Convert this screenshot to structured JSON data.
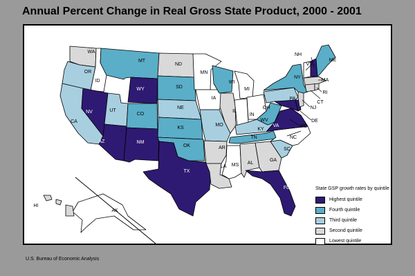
{
  "title": "Annual Percent Change in Real Gross State Product, 2000 - 2001",
  "source": "U.S. Bureau of Economic Analysis",
  "colors": {
    "q5": "#2e1a72",
    "q4": "#5aaec8",
    "q3": "#a8cfe0",
    "q2": "#d9d9d9",
    "q1": "#ffffff",
    "outline": "#000000"
  },
  "legend": {
    "title": "State GSP growth rates by quintile",
    "items": [
      {
        "label": "Highest quintile",
        "quintile": "q5"
      },
      {
        "label": "Fourth quintile",
        "quintile": "q4"
      },
      {
        "label": "Third quintile",
        "quintile": "q3"
      },
      {
        "label": "Second quintile",
        "quintile": "q2"
      },
      {
        "label": "Lowest quintile",
        "quintile": "q1"
      }
    ]
  },
  "states": [
    {
      "abbr": "WA",
      "quintile": "q2"
    },
    {
      "abbr": "OR",
      "quintile": "q3"
    },
    {
      "abbr": "CA",
      "quintile": "q3"
    },
    {
      "abbr": "ID",
      "quintile": "q1"
    },
    {
      "abbr": "NV",
      "quintile": "q5"
    },
    {
      "abbr": "UT",
      "quintile": "q3"
    },
    {
      "abbr": "AZ",
      "quintile": "q5"
    },
    {
      "abbr": "MT",
      "quintile": "q4"
    },
    {
      "abbr": "WY",
      "quintile": "q5"
    },
    {
      "abbr": "CO",
      "quintile": "q4"
    },
    {
      "abbr": "NM",
      "quintile": "q5"
    },
    {
      "abbr": "ND",
      "quintile": "q2"
    },
    {
      "abbr": "SD",
      "quintile": "q4"
    },
    {
      "abbr": "NE",
      "quintile": "q3"
    },
    {
      "abbr": "KS",
      "quintile": "q4"
    },
    {
      "abbr": "OK",
      "quintile": "q4"
    },
    {
      "abbr": "TX",
      "quintile": "q5"
    },
    {
      "abbr": "MN",
      "quintile": "q1"
    },
    {
      "abbr": "IA",
      "quintile": "q1"
    },
    {
      "abbr": "MO",
      "quintile": "q3"
    },
    {
      "abbr": "AR",
      "quintile": "q2"
    },
    {
      "abbr": "LA",
      "quintile": "q2"
    },
    {
      "abbr": "WI",
      "quintile": "q4"
    },
    {
      "abbr": "IL",
      "quintile": "q2"
    },
    {
      "abbr": "MI",
      "quintile": "q1"
    },
    {
      "abbr": "IN",
      "quintile": "q1"
    },
    {
      "abbr": "OH",
      "quintile": "q1"
    },
    {
      "abbr": "KY",
      "quintile": "q3"
    },
    {
      "abbr": "TN",
      "quintile": "q4"
    },
    {
      "abbr": "MS",
      "quintile": "q1"
    },
    {
      "abbr": "AL",
      "quintile": "q2"
    },
    {
      "abbr": "GA",
      "quintile": "q2"
    },
    {
      "abbr": "FL",
      "quintile": "q5"
    },
    {
      "abbr": "SC",
      "quintile": "q3"
    },
    {
      "abbr": "NC",
      "quintile": "q1"
    },
    {
      "abbr": "VA",
      "quintile": "q5"
    },
    {
      "abbr": "WV",
      "quintile": "q4"
    },
    {
      "abbr": "MD",
      "quintile": "q5"
    },
    {
      "abbr": "DE",
      "quintile": "q5"
    },
    {
      "abbr": "PA",
      "quintile": "q3"
    },
    {
      "abbr": "NJ",
      "quintile": "q2"
    },
    {
      "abbr": "NY",
      "quintile": "q4"
    },
    {
      "abbr": "CT",
      "quintile": "q2"
    },
    {
      "abbr": "RI",
      "quintile": "q2"
    },
    {
      "abbr": "MA",
      "quintile": "q2"
    },
    {
      "abbr": "VT",
      "quintile": "q1"
    },
    {
      "abbr": "NH",
      "quintile": "q5"
    },
    {
      "abbr": "ME",
      "quintile": "q4"
    },
    {
      "abbr": "AK",
      "quintile": "q1"
    },
    {
      "abbr": "HI",
      "quintile": "q2"
    }
  ]
}
